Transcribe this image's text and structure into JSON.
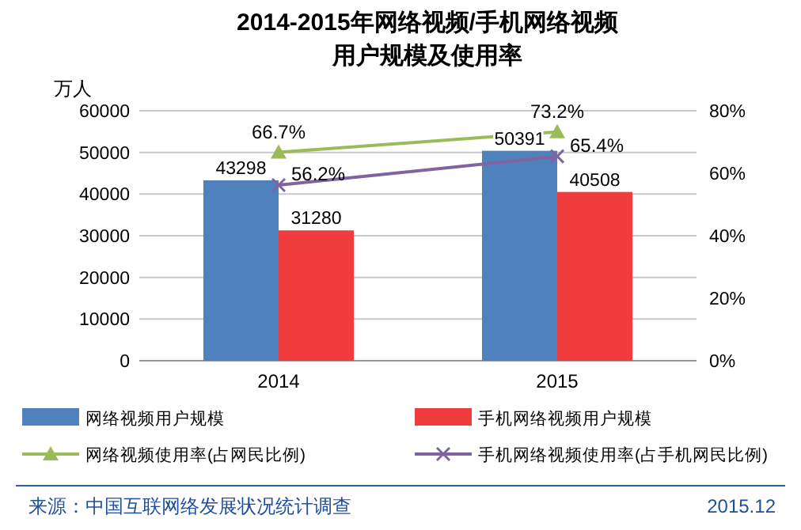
{
  "chart_data": {
    "type": "bar",
    "title": "2014-2015年网络视频/手机网络视频用户规模及使用率",
    "ylabel": "万人",
    "categories": [
      "2014",
      "2015"
    ],
    "series": [
      {
        "name": "网络视频用户规模",
        "color": "#4f81bd",
        "values": [
          43298,
          50391
        ],
        "value_labels": [
          "43298",
          "50391"
        ]
      },
      {
        "name": "手机网络视频用户规模",
        "color": "#f03c3c",
        "values": [
          31280,
          40508
        ],
        "value_labels": [
          "31280",
          "40508"
        ]
      },
      {
        "name": "网络视频使用率(占网民比例)",
        "type": "line",
        "axis": "y2",
        "marker": "triangle",
        "color": "#9bbb59",
        "values": [
          66.7,
          73.2
        ],
        "value_labels": [
          "66.7%",
          "73.2%"
        ]
      },
      {
        "name": "手机网络视频使用率(占手机网民比例)",
        "type": "line",
        "axis": "y2",
        "marker": "cross",
        "color": "#8064a2",
        "values": [
          56.2,
          65.4
        ],
        "value_labels": [
          "56.2%",
          "65.4%"
        ]
      }
    ],
    "ylim": [
      0,
      60000
    ],
    "yticks": [
      0,
      10000,
      20000,
      30000,
      40000,
      50000,
      60000
    ],
    "y2lim": [
      0,
      80
    ],
    "y2ticks": [
      {
        "value": 0,
        "label": "0%"
      },
      {
        "value": 20,
        "label": "20%"
      },
      {
        "value": 40,
        "label": "40%"
      },
      {
        "value": 60,
        "label": "60%"
      },
      {
        "value": 80,
        "label": "80%"
      }
    ],
    "grid": "y",
    "legend": "bottom",
    "annotations": [
      "来源：中国互联网络发展状况统计调查",
      "2015.12"
    ]
  }
}
